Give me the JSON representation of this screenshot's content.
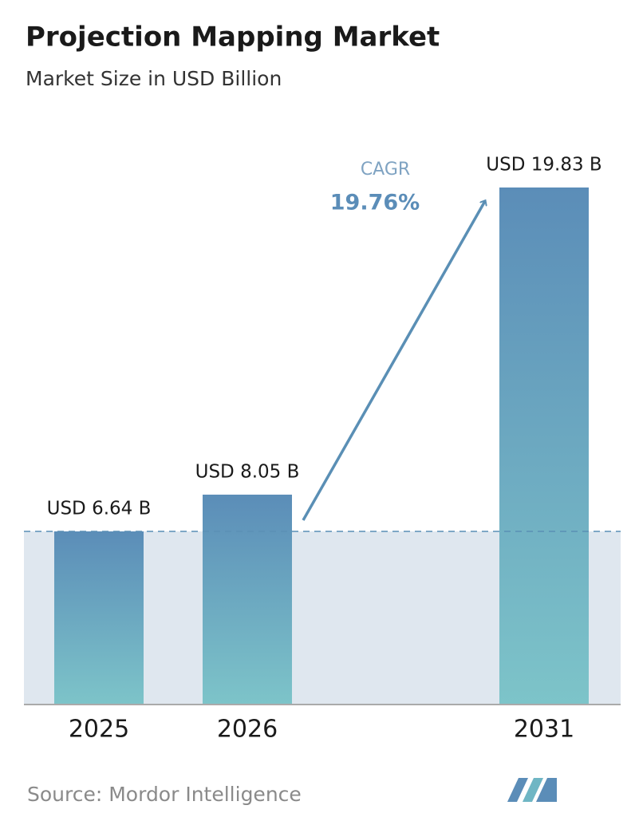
{
  "chart_data": {
    "type": "bar",
    "title": "Projection Mapping Market",
    "subtitle": "Market Size in USD Billion",
    "categories": [
      "2025",
      "2026",
      "2031"
    ],
    "values": [
      6.64,
      8.05,
      19.83
    ],
    "value_labels": [
      "USD 6.64 B",
      "USD 8.05 B",
      "USD 19.83 B"
    ],
    "annotations": {
      "cagr_label": "CAGR",
      "cagr_value": "19.76%"
    },
    "source": "Source:  Mordor Intelligence"
  }
}
